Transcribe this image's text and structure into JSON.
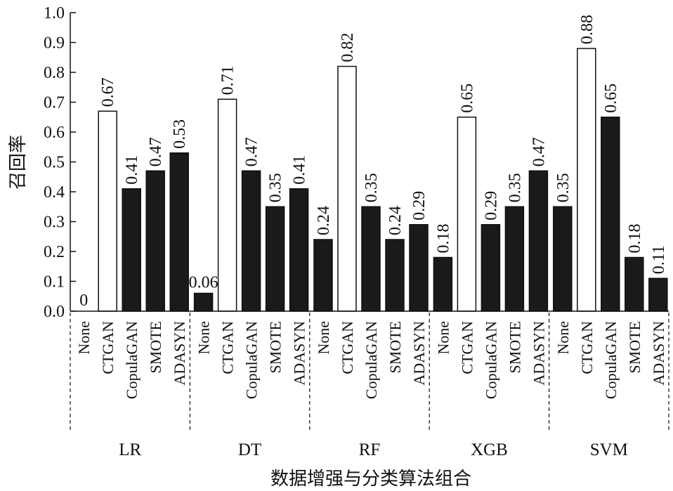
{
  "chart_data": {
    "type": "bar",
    "xlabel": "数据增强与分类算法组合",
    "ylabel": "召回率",
    "ylim": [
      0,
      1.0
    ],
    "yticks": [
      "0.0",
      "0.1",
      "0.2",
      "0.3",
      "0.4",
      "0.5",
      "0.6",
      "0.7",
      "0.8",
      "0.9",
      "1.0"
    ],
    "colors": {
      "ctgan": "#ffffff",
      "other": "#1a1a1a",
      "edge": "#111111"
    },
    "groups": [
      {
        "name": "LR",
        "bars": [
          {
            "method": "None",
            "value": 0,
            "label": "0"
          },
          {
            "method": "CTGAN",
            "value": 0.67,
            "label": "0.67"
          },
          {
            "method": "CopulaGAN",
            "value": 0.41,
            "label": "0.41"
          },
          {
            "method": "SMOTE",
            "value": 0.47,
            "label": "0.47"
          },
          {
            "method": "ADASYN",
            "value": 0.53,
            "label": "0.53"
          }
        ]
      },
      {
        "name": "DT",
        "bars": [
          {
            "method": "None",
            "value": 0.06,
            "label": "0.06"
          },
          {
            "method": "CTGAN",
            "value": 0.71,
            "label": "0.71"
          },
          {
            "method": "CopulaGAN",
            "value": 0.47,
            "label": "0.47"
          },
          {
            "method": "SMOTE",
            "value": 0.35,
            "label": "0.35"
          },
          {
            "method": "ADASYN",
            "value": 0.41,
            "label": "0.41"
          }
        ]
      },
      {
        "name": "RF",
        "bars": [
          {
            "method": "None",
            "value": 0.24,
            "label": "0.24"
          },
          {
            "method": "CTGAN",
            "value": 0.82,
            "label": "0.82"
          },
          {
            "method": "CopulaGAN",
            "value": 0.35,
            "label": "0.35"
          },
          {
            "method": "SMOTE",
            "value": 0.24,
            "label": "0.24"
          },
          {
            "method": "ADASYN",
            "value": 0.29,
            "label": "0.29"
          }
        ]
      },
      {
        "name": "XGB",
        "bars": [
          {
            "method": "None",
            "value": 0.18,
            "label": "0.18"
          },
          {
            "method": "CTGAN",
            "value": 0.65,
            "label": "0.65"
          },
          {
            "method": "CopulaGAN",
            "value": 0.29,
            "label": "0.29"
          },
          {
            "method": "SMOTE",
            "value": 0.35,
            "label": "0.35"
          },
          {
            "method": "ADASYN",
            "value": 0.47,
            "label": "0.47"
          }
        ]
      },
      {
        "name": "SVM",
        "bars": [
          {
            "method": "None",
            "value": 0.35,
            "label": "0.35"
          },
          {
            "method": "CTGAN",
            "value": 0.88,
            "label": "0.88"
          },
          {
            "method": "CopulaGAN",
            "value": 0.65,
            "label": "0.65"
          },
          {
            "method": "SMOTE",
            "value": 0.18,
            "label": "0.18"
          },
          {
            "method": "ADASYN",
            "value": 0.11,
            "label": "0.11"
          }
        ]
      }
    ]
  }
}
